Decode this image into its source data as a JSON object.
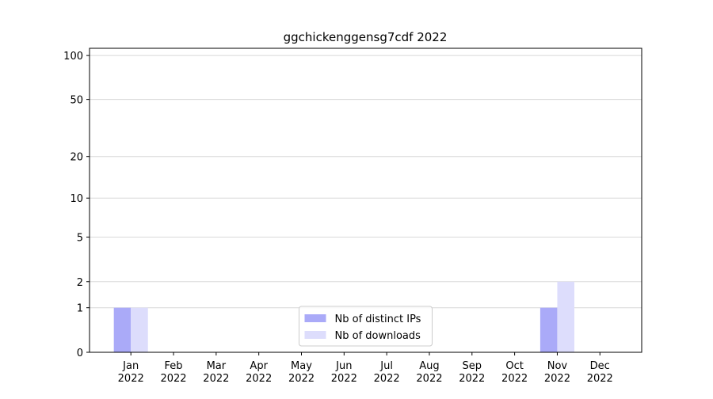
{
  "chart_data": {
    "type": "bar",
    "title": "ggchickenggensg7cdf 2022",
    "categories": [
      "Jan\n2022",
      "Feb\n2022",
      "Mar\n2022",
      "Apr\n2022",
      "May\n2022",
      "Jun\n2022",
      "Jul\n2022",
      "Aug\n2022",
      "Sep\n2022",
      "Oct\n2022",
      "Nov\n2022",
      "Dec\n2022"
    ],
    "series": [
      {
        "name": "Nb of distinct IPs",
        "color": "#aaaaf8",
        "values": [
          1,
          0,
          0,
          0,
          0,
          0,
          0,
          0,
          0,
          0,
          1,
          0
        ]
      },
      {
        "name": "Nb of downloads",
        "color": "#ddddfc",
        "values": [
          1,
          0,
          0,
          0,
          0,
          0,
          0,
          0,
          0,
          0,
          2,
          0
        ]
      }
    ],
    "yscale": "log1p",
    "ylim": [
      0,
      112
    ],
    "yticks": [
      0,
      1,
      2,
      5,
      10,
      20,
      50,
      100
    ],
    "grid": true,
    "legend": "lower center"
  }
}
